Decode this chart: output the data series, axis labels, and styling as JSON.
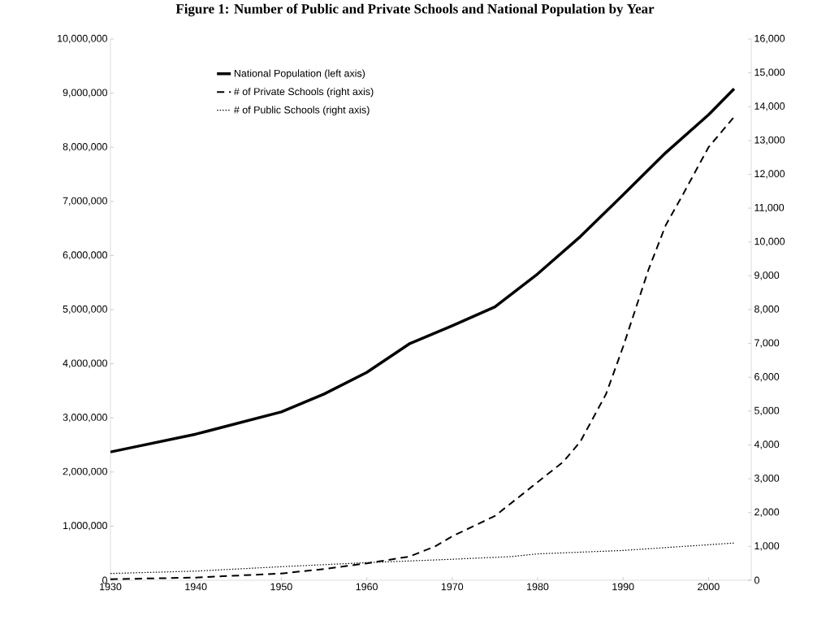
{
  "chart_data": {
    "type": "line",
    "title": "Figure 1: Number of Public and Private Schools and National Population by Year",
    "xlim": [
      1930,
      2005
    ],
    "xticks": [
      1930,
      1940,
      1950,
      1960,
      1970,
      1980,
      1990,
      2000
    ],
    "ylim": [
      0,
      10000000
    ],
    "yticks": [
      {
        "value": 0,
        "label": "0"
      },
      {
        "value": 1000000,
        "label": "1,000,000"
      },
      {
        "value": 2000000,
        "label": "2,000,000"
      },
      {
        "value": 3000000,
        "label": "3,000,000"
      },
      {
        "value": 4000000,
        "label": "4,000,000"
      },
      {
        "value": 5000000,
        "label": "5,000,000"
      },
      {
        "value": 6000000,
        "label": "6,000,000"
      },
      {
        "value": 7000000,
        "label": "7,000,000"
      },
      {
        "value": 8000000,
        "label": "8,000,000"
      },
      {
        "value": 9000000,
        "label": "9,000,000"
      },
      {
        "value": 10000000,
        "label": "10,000,000"
      }
    ],
    "y2lim": [
      0,
      16000
    ],
    "y2ticks": [
      0,
      {
        "value": 1000,
        "label": "1,000"
      },
      {
        "value": 2000,
        "label": "2,000"
      },
      {
        "value": 3000,
        "label": "3,000"
      },
      {
        "value": 4000,
        "label": "4,000"
      },
      {
        "value": 5000,
        "label": "5,000"
      },
      {
        "value": 6000,
        "label": "6,000"
      },
      {
        "value": 7000,
        "label": "7,000"
      },
      {
        "value": 8000,
        "label": "8,000"
      },
      {
        "value": 9000,
        "label": "9,000"
      },
      {
        "value": 10000,
        "label": "10,000"
      },
      {
        "value": 11000,
        "label": "11,000"
      },
      {
        "value": 12000,
        "label": "12,000"
      },
      {
        "value": 13000,
        "label": "13,000"
      },
      {
        "value": 14000,
        "label": "14,000"
      },
      {
        "value": 15000,
        "label": "15,000"
      },
      {
        "value": 16000,
        "label": "16,000"
      }
    ],
    "legend": "top left",
    "grid": false,
    "marker": "none",
    "series": [
      {
        "name": "National Population (left axis)",
        "color": "#000000",
        "line_style": "solid",
        "x": [
          1930,
          1940,
          1950,
          1955,
          1960,
          1965,
          1970,
          1975,
          1980,
          1985,
          1990,
          1995,
          2000,
          2003
        ],
        "values": [
          2370000,
          2700000,
          3110000,
          3440000,
          3840000,
          4370000,
          4700000,
          5050000,
          5660000,
          6350000,
          7120000,
          7900000,
          8600000,
          9080000
        ]
      },
      {
        "name": "# of Private Schools (right axis)",
        "axis": "y2",
        "color": "#000000",
        "line_style": "dashed",
        "x": [
          1930,
          1940,
          1950,
          1955,
          1960,
          1965,
          1968,
          1970,
          1975,
          1980,
          1983,
          1985,
          1988,
          1990,
          1993,
          1995,
          1997,
          2000,
          2003
        ],
        "values": [
          30,
          80,
          200,
          330,
          500,
          700,
          1000,
          1300,
          1900,
          2900,
          3500,
          4100,
          5500,
          6900,
          9200,
          10500,
          11400,
          12800,
          13700
        ]
      },
      {
        "name": "# of Public Schools (right axis)",
        "axis": "y2",
        "color": "#000000",
        "line_style": "dotted",
        "x": [
          1930,
          1940,
          1950,
          1960,
          1970,
          1977,
          1980,
          1990,
          2000,
          2003
        ],
        "values": [
          200,
          270,
          400,
          520,
          620,
          700,
          780,
          880,
          1050,
          1100
        ]
      }
    ]
  }
}
